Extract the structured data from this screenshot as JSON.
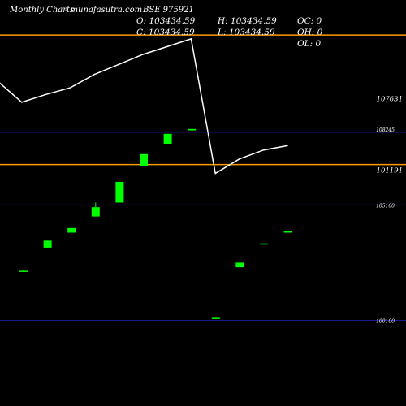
{
  "header": {
    "title": "Monthly Charts",
    "site": "- munafasutra.com",
    "symbol": "BSE 975921"
  },
  "ohlc": {
    "o": "O: 103434.59",
    "h": "H: 103434.59",
    "c": "C: 103434.59",
    "l": "L: 103434.59",
    "oc": "OC: 0",
    "oh": "OH: 0",
    "ol": "OL: 0"
  },
  "colors": {
    "background": "#000000",
    "up": "#00ff00",
    "line": "#ffffff",
    "band": "#ff9900",
    "grid": "#1a1a99"
  },
  "chart_data": {
    "type": "candlestick",
    "line_panel": {
      "series": [
        {
          "values": [
            108700,
            106800,
            107500,
            108100,
            109300,
            110200,
            111100,
            111800,
            112500,
            100400,
            101700,
            102500,
            102900
          ]
        }
      ],
      "ylim": [
        97000,
        116000
      ],
      "y_ticks": [
        101191,
        107631
      ],
      "bands": [
        101191,
        112850
      ]
    },
    "candle_panel": {
      "ylim": [
        98500,
        108700
      ],
      "y_ticks": [
        100100,
        105100,
        108245
      ],
      "candles": [
        {
          "open": 102250,
          "high": 102270,
          "low": 102230,
          "close": 102250
        },
        {
          "open": 103250,
          "high": 103550,
          "low": 103250,
          "close": 103550
        },
        {
          "open": 103900,
          "high": 104100,
          "low": 103900,
          "close": 104100
        },
        {
          "open": 104600,
          "high": 105200,
          "low": 104600,
          "close": 105000
        },
        {
          "open": 105200,
          "high": 106100,
          "low": 105200,
          "close": 106100
        },
        {
          "open": 106800,
          "high": 107300,
          "low": 106800,
          "close": 107300
        },
        {
          "open": 107750,
          "high": 108180,
          "low": 107750,
          "close": 108180
        },
        {
          "open": 108330,
          "high": 108390,
          "low": 108330,
          "close": 108390
        },
        {
          "open": 100180,
          "high": 100210,
          "low": 100180,
          "close": 100210
        },
        {
          "open": 102400,
          "high": 102600,
          "low": 102400,
          "close": 102600
        },
        {
          "open": 103434.59,
          "high": 103434.59,
          "low": 103434.59,
          "close": 103434.59
        },
        {
          "open": 103910,
          "high": 103950,
          "low": 103910,
          "close": 103950
        }
      ]
    }
  }
}
